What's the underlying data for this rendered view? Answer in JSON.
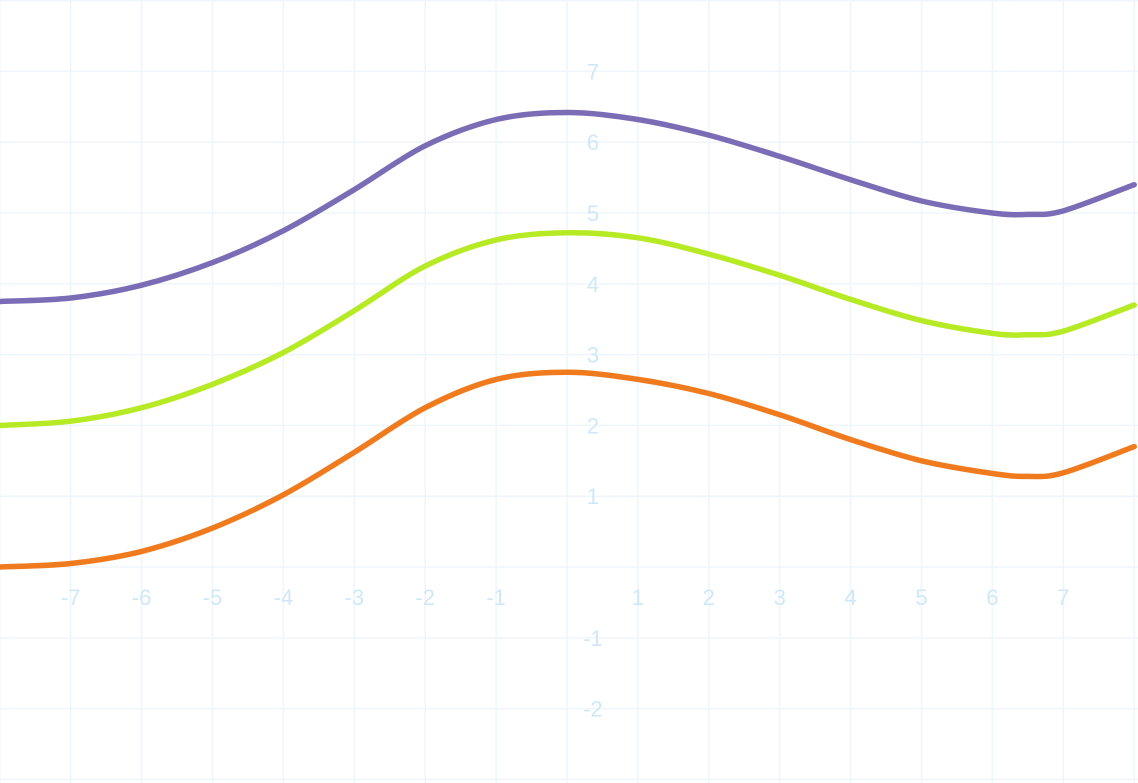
{
  "chart_data": {
    "type": "line",
    "title": "",
    "xlabel": "",
    "ylabel": "",
    "xlim": [
      -8,
      8
    ],
    "ylim": [
      -3,
      8
    ],
    "grid": true,
    "legend": "none",
    "x_ticks": [
      -7,
      -6,
      -5,
      -4,
      -3,
      -2,
      -1,
      1,
      2,
      3,
      4,
      5,
      6,
      7
    ],
    "y_ticks": [
      -2,
      -1,
      1,
      2,
      3,
      4,
      5,
      6,
      7
    ],
    "x_tick_labels": [
      "-7",
      "-6",
      "-5",
      "-4",
      "-3",
      "-2",
      "-1",
      "1",
      "2",
      "3",
      "4",
      "5",
      "6",
      "7"
    ],
    "y_tick_labels": [
      "-2",
      "-1",
      "1",
      "2",
      "3",
      "4",
      "5",
      "6",
      "7"
    ],
    "x": [
      -8,
      -7,
      -6,
      -5,
      -4,
      -3,
      -2,
      -1,
      0,
      1,
      2,
      3,
      4,
      5,
      6,
      6.5,
      7,
      8
    ],
    "series": [
      {
        "color": "#7b6db5",
        "values": [
          3.75,
          3.8,
          3.98,
          4.3,
          4.75,
          5.33,
          5.95,
          6.32,
          6.42,
          6.32,
          6.1,
          5.8,
          5.47,
          5.17,
          5.0,
          4.98,
          5.03,
          5.4
        ]
      },
      {
        "color": "#b6ea24",
        "values": [
          2.0,
          2.06,
          2.25,
          2.58,
          3.03,
          3.62,
          4.25,
          4.62,
          4.72,
          4.65,
          4.42,
          4.12,
          3.78,
          3.48,
          3.3,
          3.28,
          3.33,
          3.7
        ]
      },
      {
        "color": "#f07b1e",
        "values": [
          0.0,
          0.05,
          0.22,
          0.55,
          1.02,
          1.62,
          2.25,
          2.65,
          2.75,
          2.65,
          2.45,
          2.15,
          1.8,
          1.5,
          1.32,
          1.28,
          1.33,
          1.7
        ]
      }
    ],
    "colors": {
      "grid": "#eef6fb",
      "tick_label": "#cfe8f7"
    }
  }
}
